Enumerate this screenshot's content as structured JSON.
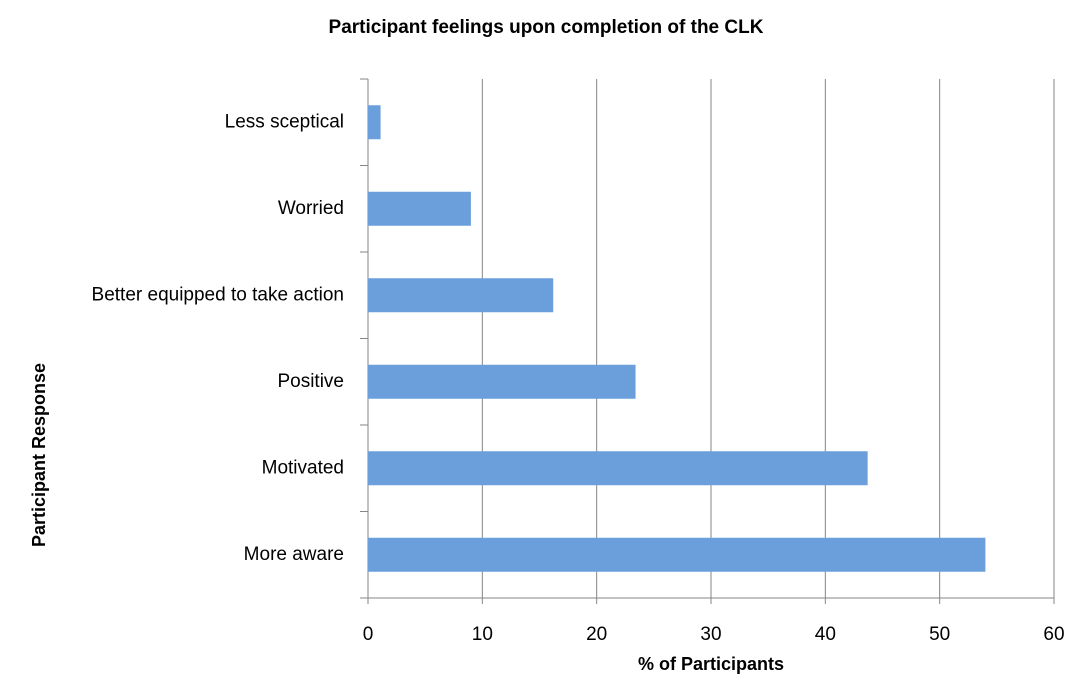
{
  "chart_data": {
    "type": "barh",
    "title": "Participant feelings upon completion of the CLK",
    "categories": [
      "Less sceptical",
      "Worried",
      "Better equipped to take action",
      "Positive",
      "Motivated",
      "More aware"
    ],
    "values": [
      1.1,
      9.0,
      16.2,
      23.4,
      43.7,
      54.0
    ],
    "color": "#6a9fdb",
    "x_label": "% of Participants",
    "y_label": "Participant Response",
    "xlim": [
      0,
      60
    ],
    "xticks": [
      0,
      10,
      20,
      30,
      40,
      50,
      60
    ],
    "grid": true
  }
}
